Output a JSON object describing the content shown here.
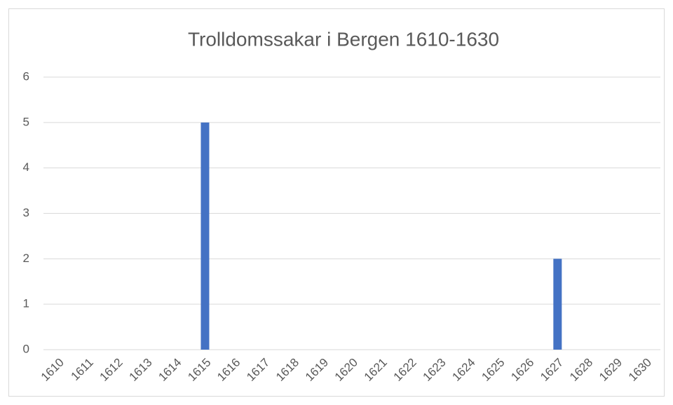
{
  "chart_data": {
    "type": "bar",
    "title": "Trolldomssakar i Bergen 1610-1630",
    "categories": [
      "1610",
      "1611",
      "1612",
      "1613",
      "1614",
      "1615",
      "1616",
      "1617",
      "1618",
      "1619",
      "1620",
      "1621",
      "1622",
      "1623",
      "1624",
      "1625",
      "1626",
      "1627",
      "1628",
      "1629",
      "1630"
    ],
    "values": [
      0,
      0,
      0,
      0,
      0,
      5,
      0,
      0,
      0,
      0,
      0,
      0,
      0,
      0,
      0,
      0,
      0,
      2,
      0,
      0,
      0
    ],
    "color": "#4472c4",
    "ylim": [
      0,
      6
    ],
    "yticks": [
      0,
      1,
      2,
      3,
      4,
      5,
      6
    ],
    "grid": true
  }
}
